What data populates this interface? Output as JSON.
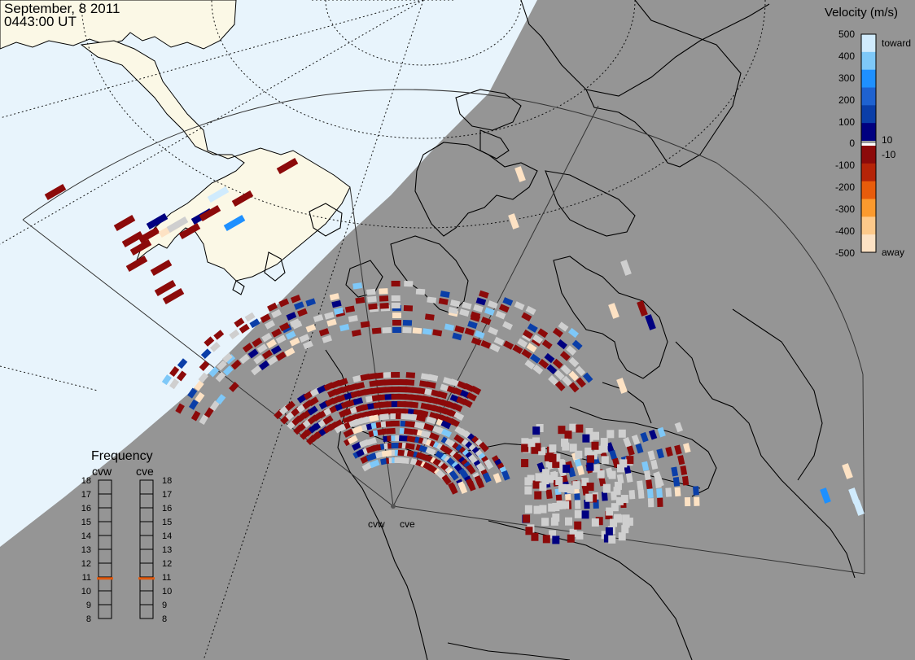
{
  "header": {
    "date": "September, 8 2011",
    "time": "0443:00 UT"
  },
  "colors": {
    "ocean_day": "#e8f4fc",
    "land_day": "#fbf8e6",
    "night": "#959595",
    "coast": "#000000",
    "ground_scatter": "#cfcfcf"
  },
  "velocity_scale": {
    "title": "Velocity (m/s)",
    "ticks": [
      "500",
      "400",
      "300",
      "200",
      "100",
      "10",
      "0",
      "-10",
      "-100",
      "-200",
      "-300",
      "-400",
      "-500"
    ],
    "toward_label": "toward",
    "away_label": "away",
    "colors": [
      "#fde2c4",
      "#fdc98a",
      "#fb9a2e",
      "#e85c0b",
      "#b52408",
      "#8c0a0a",
      "#9b9b9b",
      "#ffffff",
      "#000080",
      "#0a3ea8",
      "#1e62d0",
      "#1e90ff",
      "#7ec8f8",
      "#d0ebfd"
    ]
  },
  "radars": {
    "west": "cvw",
    "east": "cve"
  },
  "frequency": {
    "title": "Frequency",
    "left_label": "cvw",
    "right_label": "cve",
    "ticks": [
      "18",
      "17",
      "16",
      "15",
      "14",
      "13",
      "12",
      "11",
      "10",
      "9",
      "8"
    ],
    "cvw_value": 10.9,
    "cve_value": 10.9,
    "marker_color": "#e05a10"
  }
}
